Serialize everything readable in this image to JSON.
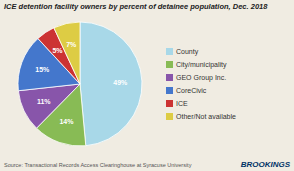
{
  "chart_data": {
    "type": "pie",
    "title": "ICE detention facility owners by percent of detainee population, Dec. 2018",
    "categories": [
      "County",
      "City/municipality",
      "GEO Group Inc.",
      "CoreCivic",
      "ICE",
      "Other/Not available"
    ],
    "values": [
      49,
      14,
      11,
      15,
      5,
      7
    ],
    "value_labels": [
      "49%",
      "14%",
      "11%",
      "15%",
      "5%",
      "7%"
    ],
    "colors": [
      "#a8d8e8",
      "#88bb55",
      "#8855aa",
      "#4477cc",
      "#cc3333",
      "#ddcc44"
    ],
    "data_labels": true,
    "legend": "right",
    "annotations": [
      "Source: Transactional Records Access Clearinghouse at Syracuse University",
      "BROOKINGS"
    ]
  }
}
